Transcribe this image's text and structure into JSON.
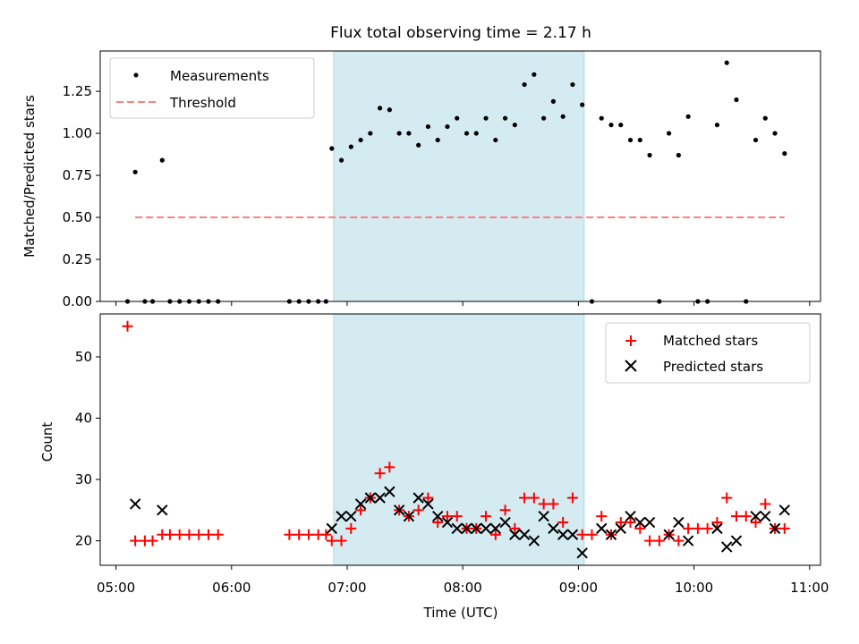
{
  "figure": {
    "title": "Flux total observing time = 2.17 h",
    "xlabel": "Time (UTC)",
    "xticks": [
      "05:00",
      "06:00",
      "07:00",
      "08:00",
      "09:00",
      "10:00",
      "11:00"
    ],
    "span": {
      "start": "06:53",
      "end": "09:03",
      "color": "#add8e6"
    }
  },
  "chart_data": [
    {
      "type": "scatter",
      "name": "ratio",
      "ylabel": "Matched/Predicted stars",
      "ylim": [
        0,
        1.49
      ],
      "yticks": [
        "0.00",
        "0.25",
        "0.50",
        "0.75",
        "1.00",
        "1.25"
      ],
      "legend": {
        "position": "upper-left",
        "entries": [
          "Measurements",
          "Threshold"
        ]
      },
      "series": [
        {
          "name": "Measurements",
          "marker": "dot",
          "color": "#000000",
          "points": [
            [
              "05:06",
              0
            ],
            [
              "05:15",
              0
            ],
            [
              "05:19",
              0
            ],
            [
              "05:28",
              0
            ],
            [
              "05:33",
              0
            ],
            [
              "05:38",
              0
            ],
            [
              "05:43",
              0
            ],
            [
              "05:48",
              0
            ],
            [
              "05:53",
              0
            ],
            [
              "06:30",
              0
            ],
            [
              "06:35",
              0
            ],
            [
              "06:40",
              0
            ],
            [
              "06:45",
              0
            ],
            [
              "06:49",
              0
            ],
            [
              "05:10",
              0.77
            ],
            [
              "05:24",
              0.84
            ],
            [
              "06:52",
              0.91
            ],
            [
              "06:57",
              0.84
            ],
            [
              "07:02",
              0.92
            ],
            [
              "07:07",
              0.96
            ],
            [
              "07:12",
              1.0
            ],
            [
              "07:17",
              1.15
            ],
            [
              "07:22",
              1.14
            ],
            [
              "07:27",
              1.0
            ],
            [
              "07:32",
              1.0
            ],
            [
              "07:37",
              0.93
            ],
            [
              "07:42",
              1.04
            ],
            [
              "07:47",
              0.96
            ],
            [
              "07:52",
              1.04
            ],
            [
              "07:57",
              1.09
            ],
            [
              "08:02",
              1.0
            ],
            [
              "08:07",
              1.0
            ],
            [
              "08:12",
              1.09
            ],
            [
              "08:17",
              0.96
            ],
            [
              "08:22",
              1.09
            ],
            [
              "08:27",
              1.05
            ],
            [
              "08:32",
              1.29
            ],
            [
              "08:37",
              1.35
            ],
            [
              "08:42",
              1.09
            ],
            [
              "08:47",
              1.19
            ],
            [
              "08:52",
              1.1
            ],
            [
              "08:57",
              1.29
            ],
            [
              "09:02",
              1.17
            ],
            [
              "09:07",
              0
            ],
            [
              "09:12",
              1.09
            ],
            [
              "09:17",
              1.05
            ],
            [
              "09:22",
              1.05
            ],
            [
              "09:27",
              0.96
            ],
            [
              "09:32",
              0.96
            ],
            [
              "09:37",
              0.87
            ],
            [
              "09:42",
              0
            ],
            [
              "09:47",
              1.0
            ],
            [
              "09:52",
              0.87
            ],
            [
              "09:57",
              1.1
            ],
            [
              "10:02",
              0
            ],
            [
              "10:07",
              0
            ],
            [
              "10:12",
              1.05
            ],
            [
              "10:17",
              1.42
            ],
            [
              "10:22",
              1.2
            ],
            [
              "10:27",
              0
            ],
            [
              "10:32",
              0.96
            ],
            [
              "10:37",
              1.09
            ],
            [
              "10:42",
              1.0
            ],
            [
              "10:47",
              0.88
            ]
          ]
        },
        {
          "name": "Threshold",
          "style": "dashed",
          "color": "#ff7f7f",
          "x": [
            "05:10",
            "10:47"
          ],
          "y": [
            0.5,
            0.5
          ]
        }
      ]
    },
    {
      "type": "scatter",
      "name": "counts",
      "ylabel": "Count",
      "ylim": [
        16,
        57
      ],
      "yticks": [
        "20",
        "30",
        "40",
        "50"
      ],
      "legend": {
        "position": "upper-right",
        "entries": [
          "Matched stars",
          "Predicted stars"
        ]
      },
      "series": [
        {
          "name": "Matched stars",
          "marker": "plus",
          "color": "#ff0000",
          "points": [
            [
              "05:06",
              55
            ],
            [
              "05:10",
              20
            ],
            [
              "05:15",
              20
            ],
            [
              "05:19",
              20
            ],
            [
              "05:24",
              21
            ],
            [
              "05:28",
              21
            ],
            [
              "05:33",
              21
            ],
            [
              "05:38",
              21
            ],
            [
              "05:43",
              21
            ],
            [
              "05:48",
              21
            ],
            [
              "05:53",
              21
            ],
            [
              "06:30",
              21
            ],
            [
              "06:35",
              21
            ],
            [
              "06:40",
              21
            ],
            [
              "06:45",
              21
            ],
            [
              "06:49",
              21
            ],
            [
              "06:52",
              20
            ],
            [
              "06:57",
              20
            ],
            [
              "07:02",
              22
            ],
            [
              "07:07",
              25
            ],
            [
              "07:12",
              27
            ],
            [
              "07:17",
              31
            ],
            [
              "07:22",
              32
            ],
            [
              "07:27",
              25
            ],
            [
              "07:32",
              24
            ],
            [
              "07:37",
              25
            ],
            [
              "07:42",
              27
            ],
            [
              "07:47",
              23
            ],
            [
              "07:52",
              24
            ],
            [
              "07:57",
              24
            ],
            [
              "08:02",
              22
            ],
            [
              "08:07",
              22
            ],
            [
              "08:12",
              24
            ],
            [
              "08:17",
              21
            ],
            [
              "08:22",
              25
            ],
            [
              "08:27",
              22
            ],
            [
              "08:32",
              27
            ],
            [
              "08:37",
              27
            ],
            [
              "08:42",
              26
            ],
            [
              "08:47",
              26
            ],
            [
              "08:52",
              23
            ],
            [
              "08:57",
              27
            ],
            [
              "09:02",
              21
            ],
            [
              "09:07",
              21
            ],
            [
              "09:12",
              24
            ],
            [
              "09:17",
              21
            ],
            [
              "09:22",
              23
            ],
            [
              "09:27",
              23
            ],
            [
              "09:32",
              22
            ],
            [
              "09:37",
              20
            ],
            [
              "09:42",
              20
            ],
            [
              "09:47",
              21
            ],
            [
              "09:52",
              20
            ],
            [
              "09:57",
              22
            ],
            [
              "10:02",
              22
            ],
            [
              "10:07",
              22
            ],
            [
              "10:12",
              23
            ],
            [
              "10:17",
              27
            ],
            [
              "10:22",
              24
            ],
            [
              "10:27",
              24
            ],
            [
              "10:32",
              23
            ],
            [
              "10:37",
              26
            ],
            [
              "10:42",
              22
            ],
            [
              "10:47",
              22
            ]
          ]
        },
        {
          "name": "Predicted stars",
          "marker": "x",
          "color": "#000000",
          "points": [
            [
              "05:10",
              26
            ],
            [
              "05:24",
              25
            ],
            [
              "06:52",
              22
            ],
            [
              "06:57",
              24
            ],
            [
              "07:02",
              24
            ],
            [
              "07:07",
              26
            ],
            [
              "07:12",
              27
            ],
            [
              "07:17",
              27
            ],
            [
              "07:22",
              28
            ],
            [
              "07:27",
              25
            ],
            [
              "07:32",
              24
            ],
            [
              "07:37",
              27
            ],
            [
              "07:42",
              26
            ],
            [
              "07:47",
              24
            ],
            [
              "07:52",
              23
            ],
            [
              "07:57",
              22
            ],
            [
              "08:02",
              22
            ],
            [
              "08:07",
              22
            ],
            [
              "08:12",
              22
            ],
            [
              "08:17",
              22
            ],
            [
              "08:22",
              23
            ],
            [
              "08:27",
              21
            ],
            [
              "08:32",
              21
            ],
            [
              "08:37",
              20
            ],
            [
              "08:42",
              24
            ],
            [
              "08:47",
              22
            ],
            [
              "08:52",
              21
            ],
            [
              "08:57",
              21
            ],
            [
              "09:02",
              18
            ],
            [
              "09:12",
              22
            ],
            [
              "09:17",
              21
            ],
            [
              "09:22",
              22
            ],
            [
              "09:27",
              24
            ],
            [
              "09:32",
              23
            ],
            [
              "09:37",
              23
            ],
            [
              "09:47",
              21
            ],
            [
              "09:52",
              23
            ],
            [
              "09:57",
              20
            ],
            [
              "10:12",
              22
            ],
            [
              "10:17",
              19
            ],
            [
              "10:22",
              20
            ],
            [
              "10:32",
              24
            ],
            [
              "10:37",
              24
            ],
            [
              "10:42",
              22
            ],
            [
              "10:47",
              25
            ]
          ]
        }
      ]
    }
  ]
}
